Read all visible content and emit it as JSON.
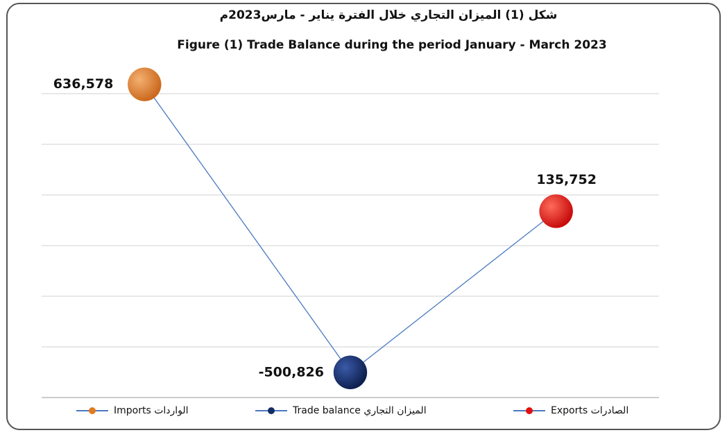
{
  "chart_data": {
    "type": "line",
    "title": "شكل (1) الميزان التجاري خلال الفترة يناير - مارس2023م",
    "subtitle": "Figure (1)  Trade Balance during the period January - March  2023",
    "categories": [
      "Imports الواردات",
      "Trade balance الميزان التجاري",
      "Exports الصادرات"
    ],
    "series": [
      {
        "values": [
          636578,
          -500826,
          135752
        ],
        "value_labels": [
          "636,578",
          "-500,826",
          "135,752"
        ],
        "color": "#4a78c0",
        "point_colors": [
          "#e07b20",
          "#142c66",
          "#e01010"
        ]
      }
    ],
    "ylim": [
      -600000,
      600000
    ],
    "yticks": [
      -600000,
      -400000,
      -200000,
      0,
      200000,
      400000,
      600000
    ],
    "grid": true,
    "legend": "bottom"
  }
}
